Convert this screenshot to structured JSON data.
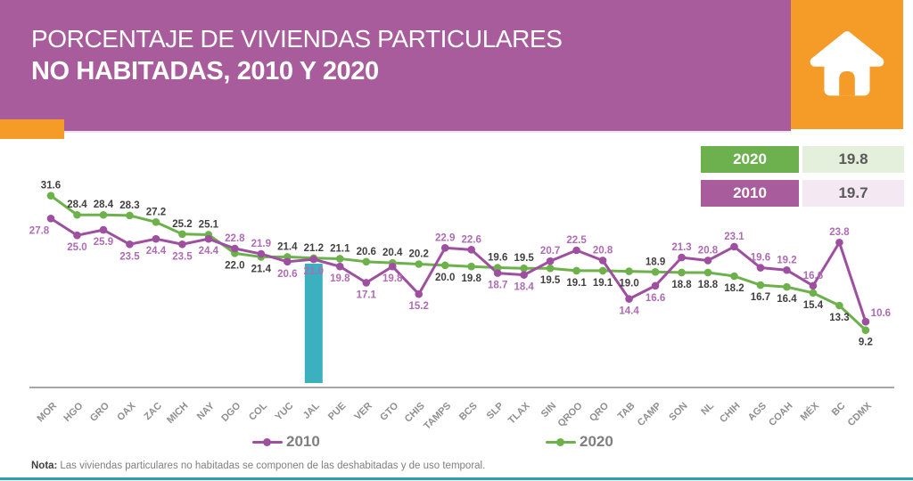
{
  "header": {
    "title_line1": "PORCENTAJE DE VIVIENDAS PARTICULARES",
    "title_line2": "NO HABITADAS, 2010 Y 2020",
    "banner_color": "#A85C9C",
    "accent_orange": "#F59B28"
  },
  "summary_table": {
    "rows": [
      {
        "label": "2020",
        "value": "19.8",
        "label_bg": "#6CB14D",
        "value_bg": "#E4F0DB"
      },
      {
        "label": "2010",
        "value": "19.7",
        "label_bg": "#A85C9C",
        "value_bg": "#F4E8F3"
      }
    ]
  },
  "chart_data": {
    "type": "line",
    "title": "Porcentaje de viviendas particulares no habitadas, 2010 y 2020",
    "categories": [
      "MOR",
      "HGO",
      "GRO",
      "OAX",
      "ZAC",
      "MICH",
      "NAY",
      "DGO",
      "COL",
      "YUC",
      "JAL",
      "PUE",
      "VER",
      "GTO",
      "CHIS",
      "TAMPS",
      "BCS",
      "SLP",
      "TLAX",
      "SIN",
      "QROO",
      "QRO",
      "TAB",
      "CAMP",
      "SON",
      "NL",
      "CHIH",
      "AGS",
      "COAH",
      "MÉX",
      "BC",
      "CDMX"
    ],
    "series": [
      {
        "name": "2010",
        "color": "#9E4FA0",
        "label_color": "#AF6BB3",
        "values": [
          27.8,
          25.0,
          25.9,
          23.5,
          24.4,
          23.5,
          24.4,
          22.8,
          21.9,
          20.6,
          21.0,
          19.8,
          17.1,
          19.8,
          15.2,
          22.9,
          22.6,
          18.7,
          18.4,
          20.7,
          22.5,
          20.8,
          14.4,
          16.6,
          21.3,
          20.8,
          23.1,
          19.6,
          19.2,
          16.6,
          23.8,
          10.6
        ]
      },
      {
        "name": "2020",
        "color": "#6CB14A",
        "label_color": "#404040",
        "values": [
          31.6,
          28.4,
          28.4,
          28.3,
          27.2,
          25.2,
          25.1,
          22.0,
          21.4,
          21.4,
          21.2,
          21.1,
          20.6,
          20.4,
          20.2,
          20.0,
          19.8,
          19.6,
          19.5,
          19.5,
          19.1,
          19.1,
          19.0,
          18.9,
          18.8,
          18.8,
          18.2,
          16.7,
          16.4,
          15.4,
          13.3,
          9.2
        ]
      }
    ],
    "highlight": {
      "category": "JAL",
      "color": "#3BB0BE"
    },
    "ylim": [
      9,
      32
    ],
    "grid": false,
    "legend_position": "bottom",
    "axis_color": "#A6A6A6"
  },
  "legend": {
    "items": [
      {
        "label": "2010",
        "color": "#9E4FA0"
      },
      {
        "label": "2020",
        "color": "#6CB14A"
      }
    ]
  },
  "note": {
    "label": "Nota:",
    "text": "Las viviendas particulares no habitadas se componen de las deshabitadas y de uso temporal."
  },
  "footer_rule_color": "#2D9FA7"
}
